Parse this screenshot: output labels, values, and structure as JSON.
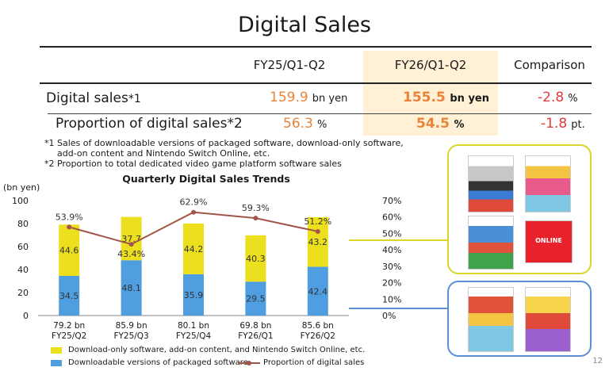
{
  "title": "Digital Sales",
  "table": {
    "col_prev": "FY25/Q1-Q2",
    "col_curr": "FY26/Q1-Q2",
    "col_comp": "Comparison",
    "row1": {
      "label": "Digital sales",
      "sup": "*1",
      "prev": "159.9",
      "prev_unit": "bn yen",
      "curr": "155.5",
      "curr_unit": "bn yen",
      "comp": "-2.8",
      "comp_unit": "%"
    },
    "row2": {
      "label": "Proportion of digital sales",
      "sup": "*2",
      "prev": "56.3",
      "prev_unit": "%",
      "curr": "54.5",
      "curr_unit": "%",
      "comp": "-1.8",
      "comp_unit": "pt."
    }
  },
  "footnotes": [
    "*1 Sales of downloadable versions of packaged software, download-only software,",
    "add-on content and Nintendo Switch Online, etc.",
    "*2 Proportion to total dedicated video game platform software sales"
  ],
  "page_number": "12",
  "colors": {
    "yellow": "#ecdf1e",
    "blue": "#4f9ee0",
    "line": "#a2564a",
    "accent": "#e8833a",
    "negative": "#e03b3b",
    "highlight": "#fff0d6",
    "box_yellow": "#dcd428",
    "box_blue": "#5a8fd6"
  },
  "chart_data": {
    "type": "bar",
    "title": "Quarterly Digital Sales Trends",
    "ylabel": "(bn yen)",
    "ylim": [
      0,
      100
    ],
    "yticks": [
      "0",
      "20",
      "40",
      "60",
      "80",
      "100"
    ],
    "y2lim": [
      0,
      70
    ],
    "y2ticks": [
      "0%",
      "10%",
      "20%",
      "30%",
      "40%",
      "50%",
      "60%",
      "70%"
    ],
    "categories": [
      "FY25/Q2",
      "FY25/Q3",
      "FY25/Q4",
      "FY26/Q1",
      "FY26/Q2"
    ],
    "totals": [
      "79.2 bn",
      "85.9 bn",
      "80.1 bn",
      "69.8 bn",
      "85.6 bn"
    ],
    "series": [
      {
        "name": "Downloadable versions of packaged software",
        "values": [
          34.5,
          48.1,
          35.9,
          29.5,
          42.4
        ],
        "labels": [
          "34.5",
          "48.1",
          "35.9",
          "29.5",
          "42.4"
        ]
      },
      {
        "name": "Download-only software, add-on content, and Nintendo Switch Online, etc.",
        "values": [
          44.6,
          37.7,
          44.2,
          40.3,
          43.2
        ],
        "labels": [
          "44.6",
          "37.7",
          "44.2",
          "40.3",
          "43.2"
        ]
      }
    ],
    "line": {
      "name": "Proportion of digital sales",
      "values": [
        53.9,
        43.4,
        62.9,
        59.3,
        51.2
      ],
      "labels": [
        "53.9%",
        "43.4%",
        "62.9%",
        "59.3%",
        "51.2%"
      ]
    },
    "grid": false,
    "legend_position": "bottom"
  },
  "product_panels": {
    "yellow": [
      "card-welcome-tour",
      "card-kirby",
      "card-donkey-kong",
      "card-nintendo-online"
    ],
    "blue": [
      "card-mario-kart",
      "card-mario-wonder"
    ]
  },
  "icons": {
    "online_badge": "ONLINE"
  }
}
